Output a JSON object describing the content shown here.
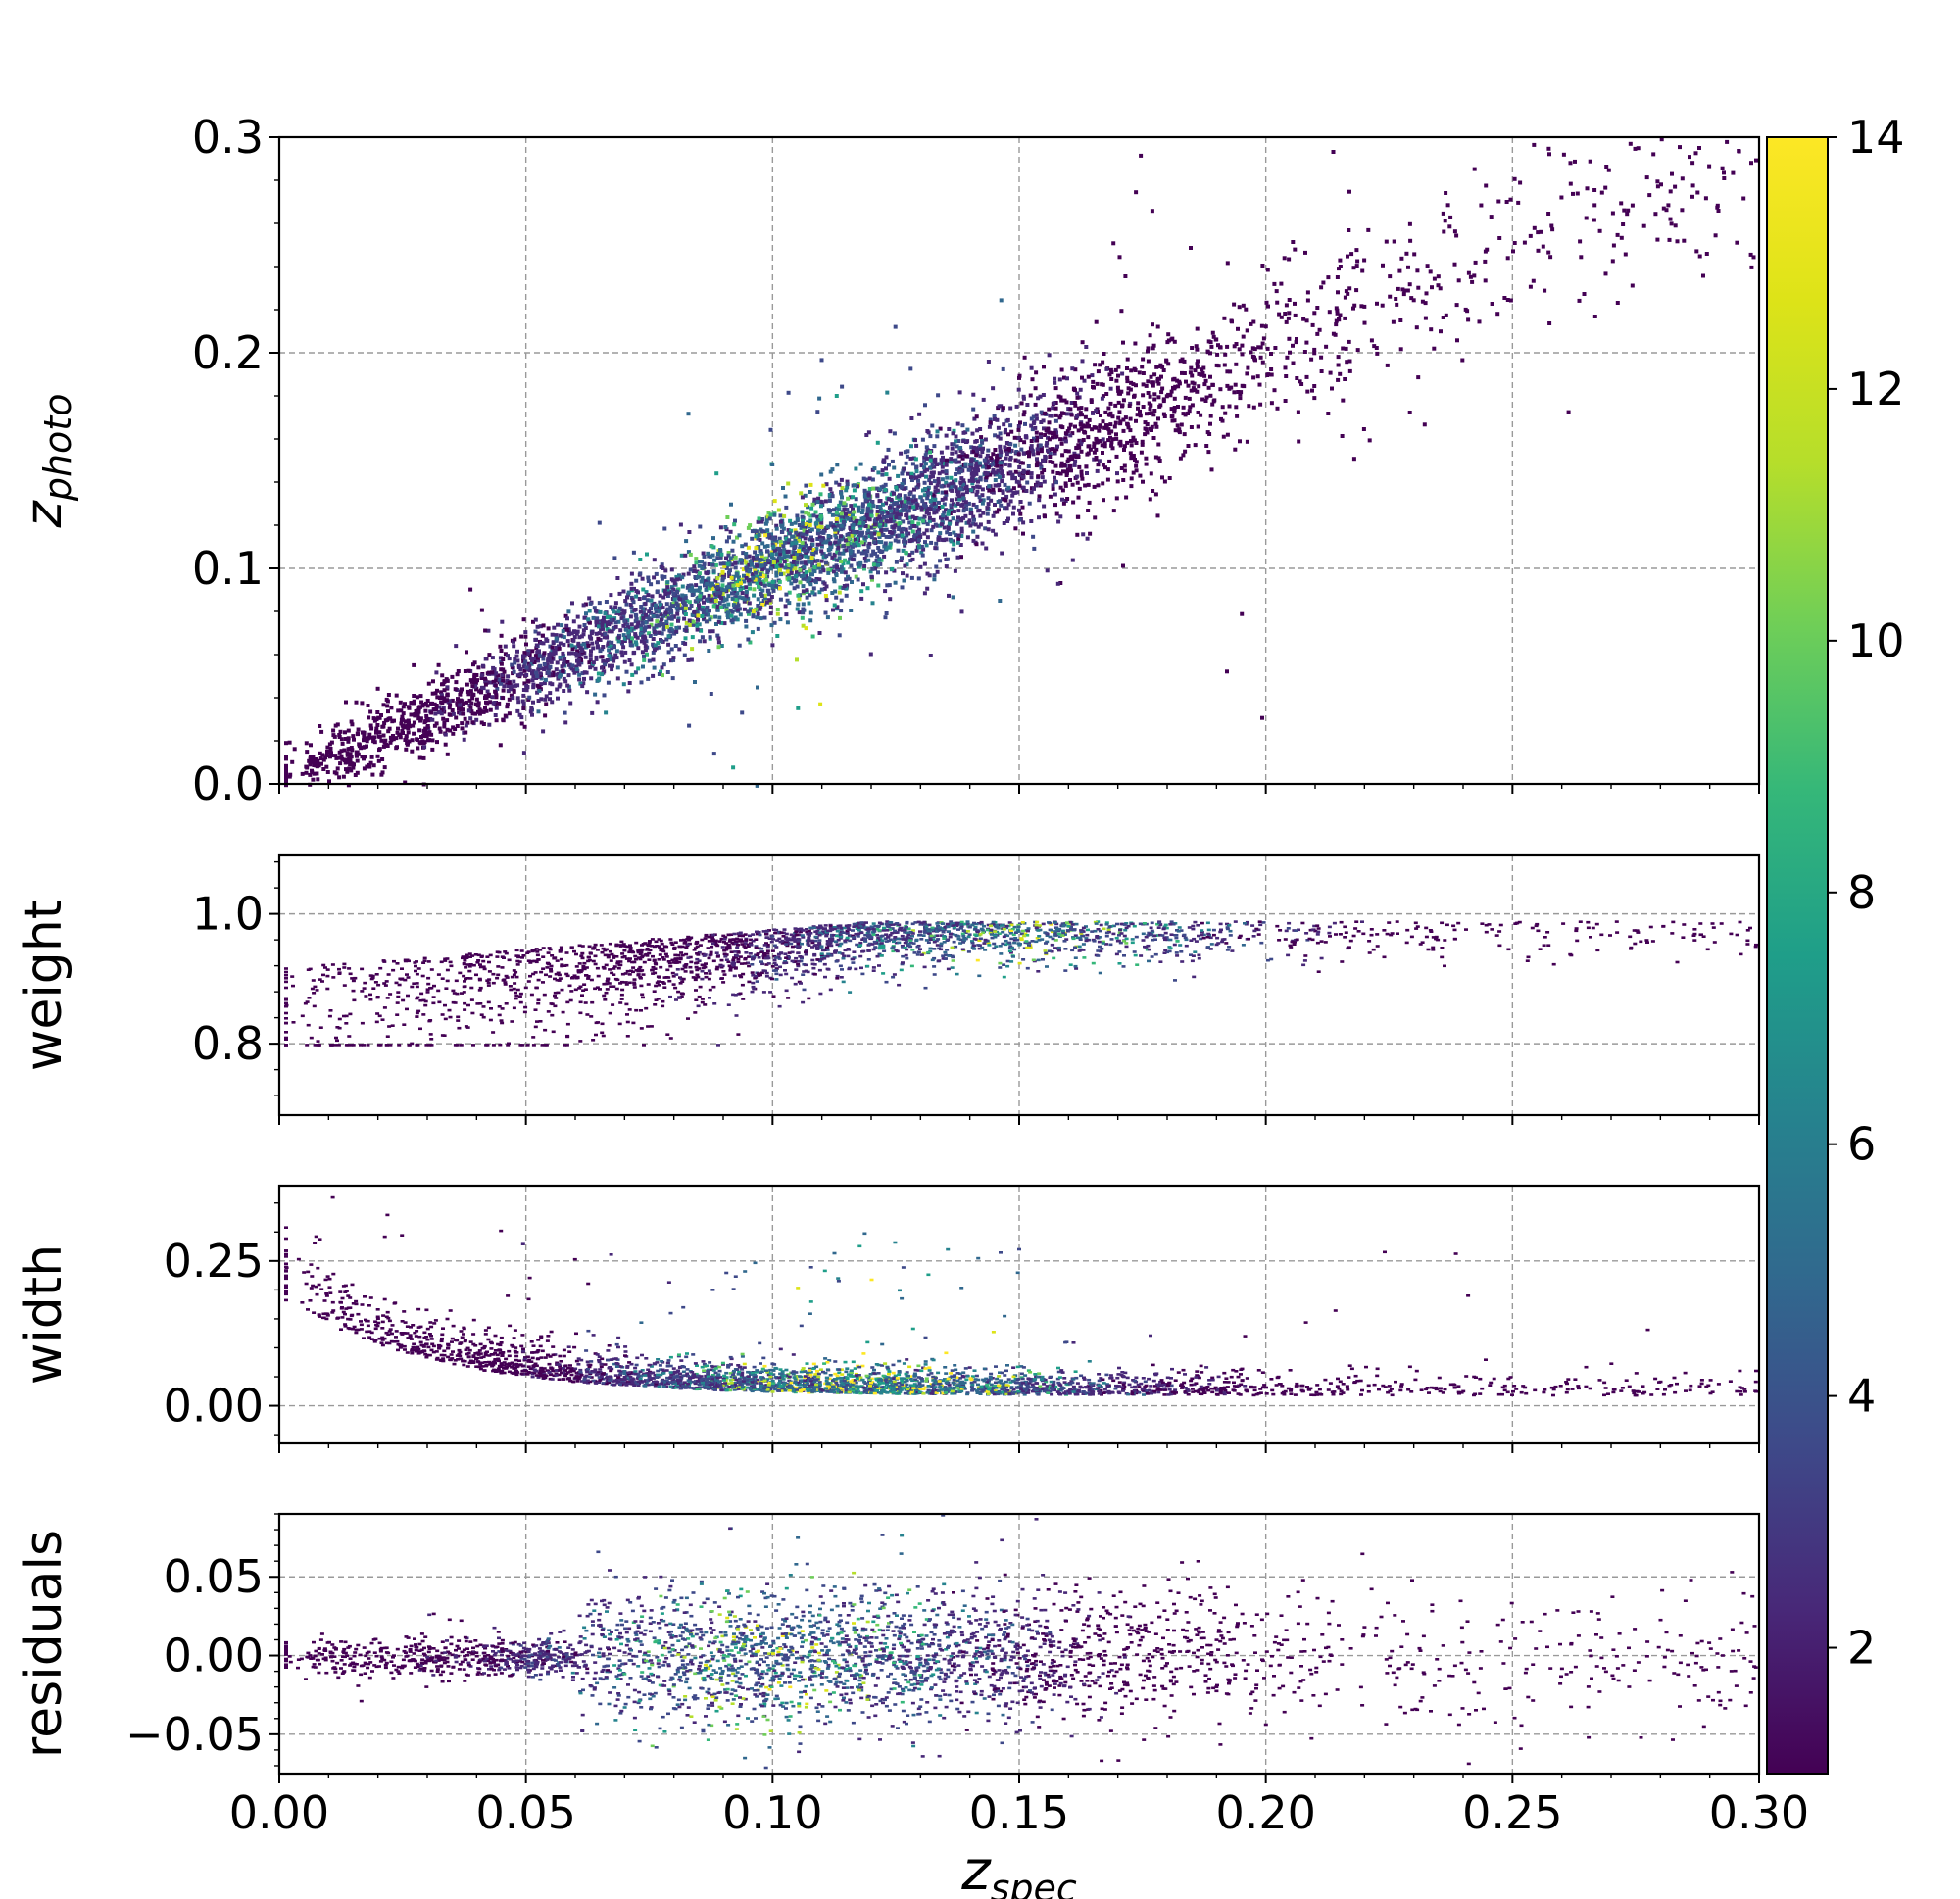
{
  "chart_data": {
    "type": "heatmap",
    "description_note": "2D histogram (hexbin-like density) panels sharing x-axis",
    "x_axis": {
      "label_main": "z",
      "label_sub": "spec",
      "range": [
        0.0,
        0.3
      ],
      "ticks": [
        0.0,
        0.05,
        0.1,
        0.15,
        0.2,
        0.25,
        0.3
      ],
      "tick_labels": [
        "0.00",
        "0.05",
        "0.10",
        "0.15",
        "0.20",
        "0.25",
        "0.30"
      ]
    },
    "panels": [
      {
        "id": "zphoto",
        "ylabel_main": "z",
        "ylabel_sub": "photo",
        "ylim": [
          0.0,
          0.3
        ],
        "ticks": [
          0.0,
          0.1,
          0.2,
          0.3
        ],
        "tick_labels": [
          "0.0",
          "0.1",
          "0.2",
          "0.3"
        ],
        "trend": {
          "kind": "linear",
          "slope": 0.98,
          "intercept": 0.004,
          "scatter": 0.018
        },
        "density_peak_x": 0.1
      },
      {
        "id": "weight",
        "ylabel_main": "weight",
        "ylim": [
          0.69,
          1.09
        ],
        "ticks": [
          0.8,
          1.0
        ],
        "tick_labels": [
          "0.8",
          "1.0"
        ],
        "trend": {
          "kind": "weight"
        },
        "density_peak_x": 0.15
      },
      {
        "id": "width",
        "ylabel_main": "width",
        "ylim": [
          -0.065,
          0.38
        ],
        "ticks": [
          0.0,
          0.25
        ],
        "tick_labels": [
          "0.00",
          "0.25"
        ],
        "trend": {
          "kind": "width"
        },
        "density_peak_x": 0.12
      },
      {
        "id": "residuals",
        "ylabel_main": "residuals",
        "ylim": [
          -0.075,
          0.09
        ],
        "ticks": [
          -0.05,
          0.0,
          0.05
        ],
        "tick_labels": [
          "−0.05",
          "0.00",
          "0.05"
        ],
        "trend": {
          "kind": "residual"
        },
        "density_peak_x": 0.1
      }
    ],
    "colorbar": {
      "colormap": "viridis",
      "range": [
        1,
        14
      ],
      "ticks": [
        2,
        4,
        6,
        8,
        10,
        12,
        14
      ],
      "tick_labels": [
        "2",
        "4",
        "6",
        "8",
        "10",
        "12",
        "14"
      ]
    }
  }
}
